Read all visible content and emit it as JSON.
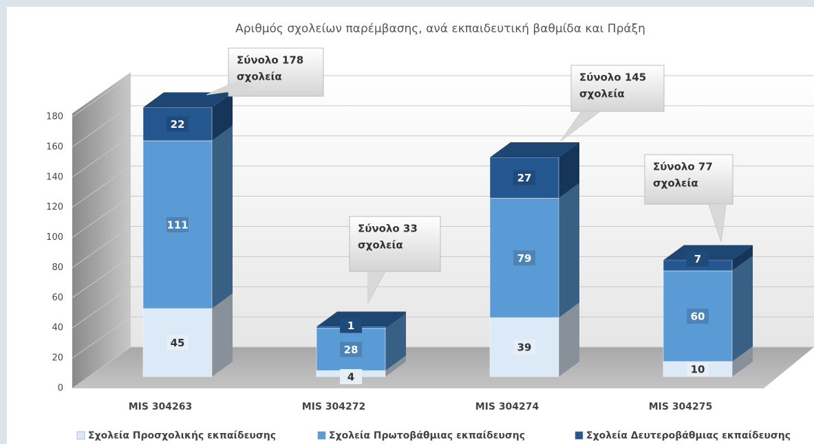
{
  "chart_data": {
    "type": "bar",
    "stacked": true,
    "title": "Αριθμός σχολείων παρέμβασης, ανά εκπαιδευτική βαθμίδα και Πράξη",
    "categories": [
      "MIS 304263",
      "MIS 304272",
      "MIS 304274",
      "MIS 304275"
    ],
    "series": [
      {
        "name": "Σχολεία Προσχολικής εκπαίδευσης",
        "color": "#dce9f6",
        "values": [
          45,
          4,
          39,
          10
        ]
      },
      {
        "name": "Σχολεία Πρωτοβάθμιας εκπαίδευσης",
        "color": "#5b9bd5",
        "values": [
          111,
          28,
          79,
          60
        ]
      },
      {
        "name": "Σχολεία Δευτεροβάθμιας εκπαίδευσης",
        "color": "#24578f",
        "values": [
          22,
          1,
          27,
          7
        ]
      }
    ],
    "ylim": [
      0,
      180
    ],
    "yticks": [
      0,
      20,
      40,
      60,
      80,
      100,
      120,
      140,
      160,
      180
    ],
    "grid": true,
    "legend": "bottom",
    "annotations": [
      {
        "lines": [
          "Σύνολο 178",
          "σχολεία"
        ]
      },
      {
        "lines": [
          "Σύνολο 33",
          "σχολεία"
        ]
      },
      {
        "lines": [
          "Σύνολο 145",
          "σχολεία"
        ]
      },
      {
        "lines": [
          "Σύνολο 77",
          "σχολεία"
        ]
      }
    ]
  }
}
